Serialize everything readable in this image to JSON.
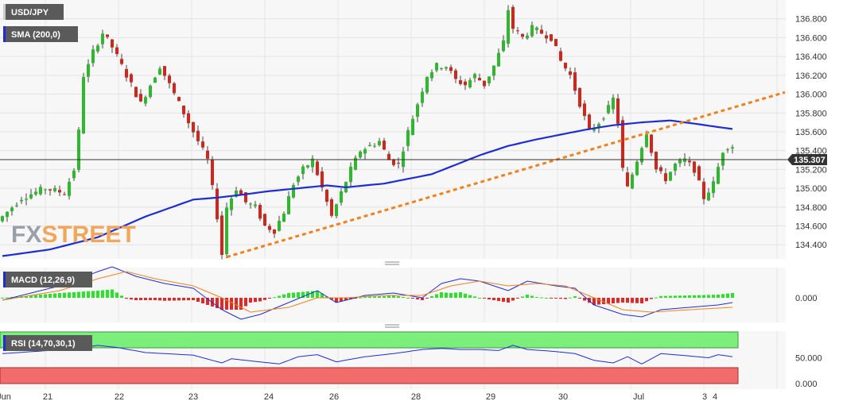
{
  "chart_data": {
    "type": "candlestick",
    "symbol": "USD/JPY",
    "indicator_label": "SMA (200,0)",
    "macd_label": "MACD (12,26,9)",
    "rsi_label": "RSI (14,70,30,1)",
    "watermark": {
      "fx": "FX",
      "street": "STREET"
    },
    "current_price": "135.307",
    "price_axis": {
      "min": 134.25,
      "max": 137.0,
      "ticks": [
        "134.400",
        "134.600",
        "134.800",
        "135.000",
        "135.200",
        "135.400",
        "135.600",
        "135.800",
        "136.000",
        "136.200",
        "136.400",
        "136.600",
        "136.800"
      ]
    },
    "macd_axis": {
      "ticks": [
        "0.000"
      ]
    },
    "rsi_axis": {
      "ticks": [
        "50.000",
        "0.000"
      ],
      "overbought": 70,
      "oversold": 30
    },
    "x_labels": [
      "Jun",
      "21",
      "22",
      "23",
      "24",
      "26",
      "28",
      "29",
      "30",
      "Jul",
      "3",
      "4"
    ],
    "price_path": [
      [
        0,
        134.65
      ],
      [
        5,
        134.9
      ],
      [
        10,
        135.0
      ],
      [
        14,
        134.95
      ],
      [
        16,
        135.2
      ],
      [
        17,
        135.6
      ],
      [
        18,
        136.2
      ],
      [
        19,
        136.3
      ],
      [
        20,
        136.45
      ],
      [
        22,
        136.65
      ],
      [
        24,
        136.5
      ],
      [
        26,
        136.3
      ],
      [
        28,
        136.1
      ],
      [
        30,
        135.9
      ],
      [
        32,
        136.1
      ],
      [
        34,
        136.3
      ],
      [
        36,
        136.1
      ],
      [
        38,
        135.9
      ],
      [
        40,
        135.7
      ],
      [
        42,
        135.5
      ],
      [
        44,
        135.3
      ],
      [
        46,
        134.7
      ],
      [
        47,
        134.3
      ],
      [
        48,
        134.8
      ],
      [
        50,
        135.0
      ],
      [
        52,
        134.85
      ],
      [
        54,
        134.8
      ],
      [
        56,
        134.6
      ],
      [
        58,
        134.55
      ],
      [
        60,
        134.75
      ],
      [
        62,
        135.05
      ],
      [
        64,
        135.2
      ],
      [
        66,
        135.3
      ],
      [
        68,
        135.0
      ],
      [
        70,
        134.7
      ],
      [
        72,
        134.95
      ],
      [
        74,
        135.2
      ],
      [
        76,
        135.4
      ],
      [
        78,
        135.45
      ],
      [
        80,
        135.5
      ],
      [
        82,
        135.3
      ],
      [
        84,
        135.25
      ],
      [
        86,
        135.6
      ],
      [
        88,
        135.9
      ],
      [
        90,
        136.2
      ],
      [
        92,
        136.3
      ],
      [
        94,
        136.3
      ],
      [
        96,
        136.15
      ],
      [
        98,
        136.1
      ],
      [
        100,
        136.2
      ],
      [
        102,
        136.1
      ],
      [
        104,
        136.3
      ],
      [
        106,
        136.55
      ],
      [
        107,
        136.9
      ],
      [
        108,
        136.7
      ],
      [
        110,
        136.6
      ],
      [
        112,
        136.7
      ],
      [
        114,
        136.65
      ],
      [
        116,
        136.6
      ],
      [
        118,
        136.35
      ],
      [
        120,
        136.2
      ],
      [
        122,
        135.9
      ],
      [
        124,
        135.6
      ],
      [
        126,
        135.7
      ],
      [
        128,
        135.85
      ],
      [
        129,
        135.95
      ],
      [
        130,
        135.7
      ],
      [
        131,
        135.2
      ],
      [
        132,
        135.0
      ],
      [
        134,
        135.3
      ],
      [
        136,
        135.6
      ],
      [
        138,
        135.2
      ],
      [
        140,
        135.1
      ],
      [
        142,
        135.25
      ],
      [
        144,
        135.3
      ],
      [
        146,
        135.2
      ],
      [
        148,
        134.9
      ],
      [
        150,
        135.05
      ],
      [
        152,
        135.4
      ],
      [
        153,
        135.45
      ]
    ],
    "sma_path": [
      [
        0,
        134.28
      ],
      [
        10,
        134.35
      ],
      [
        20,
        134.48
      ],
      [
        30,
        134.7
      ],
      [
        40,
        134.88
      ],
      [
        45,
        134.9
      ],
      [
        50,
        134.93
      ],
      [
        56,
        134.97
      ],
      [
        62,
        135.0
      ],
      [
        68,
        135.03
      ],
      [
        72,
        135.01
      ],
      [
        80,
        135.05
      ],
      [
        90,
        135.15
      ],
      [
        100,
        135.35
      ],
      [
        106,
        135.45
      ],
      [
        112,
        135.52
      ],
      [
        118,
        135.58
      ],
      [
        122,
        135.62
      ],
      [
        128,
        135.67
      ],
      [
        134,
        135.7
      ],
      [
        140,
        135.72
      ],
      [
        146,
        135.68
      ],
      [
        150,
        135.65
      ],
      [
        153,
        135.63
      ]
    ],
    "trendline": {
      "from": [
        47,
        134.27
      ],
      "to": [
        164,
        136.02
      ],
      "color": "#f0821e"
    },
    "macd_path": [
      [
        0,
        -0.01
      ],
      [
        12,
        0.05
      ],
      [
        20,
        0.11
      ],
      [
        23,
        0.13
      ],
      [
        28,
        0.09
      ],
      [
        34,
        0.06
      ],
      [
        40,
        0.04
      ],
      [
        46,
        -0.05
      ],
      [
        50,
        -0.09
      ],
      [
        54,
        -0.07
      ],
      [
        60,
        -0.02
      ],
      [
        66,
        0.03
      ],
      [
        70,
        -0.02
      ],
      [
        76,
        0.01
      ],
      [
        82,
        0.02
      ],
      [
        88,
        0.0
      ],
      [
        92,
        0.06
      ],
      [
        96,
        0.08
      ],
      [
        100,
        0.07
      ],
      [
        106,
        0.03
      ],
      [
        110,
        0.07
      ],
      [
        116,
        0.05
      ],
      [
        120,
        0.04
      ],
      [
        124,
        -0.03
      ],
      [
        130,
        -0.07
      ],
      [
        134,
        -0.08
      ],
      [
        138,
        -0.05
      ],
      [
        144,
        -0.04
      ],
      [
        150,
        -0.03
      ],
      [
        153,
        -0.02
      ]
    ],
    "signal_path": [
      [
        0,
        -0.01
      ],
      [
        12,
        0.03
      ],
      [
        20,
        0.08
      ],
      [
        26,
        0.11
      ],
      [
        32,
        0.08
      ],
      [
        40,
        0.05
      ],
      [
        46,
        0.0
      ],
      [
        52,
        -0.06
      ],
      [
        60,
        -0.04
      ],
      [
        66,
        0.0
      ],
      [
        72,
        0.0
      ],
      [
        80,
        0.01
      ],
      [
        88,
        0.01
      ],
      [
        94,
        0.05
      ],
      [
        100,
        0.07
      ],
      [
        106,
        0.05
      ],
      [
        112,
        0.06
      ],
      [
        118,
        0.05
      ],
      [
        124,
        0.0
      ],
      [
        130,
        -0.05
      ],
      [
        136,
        -0.06
      ],
      [
        144,
        -0.05
      ],
      [
        153,
        -0.04
      ]
    ],
    "rsi_path": [
      [
        0,
        58
      ],
      [
        8,
        63
      ],
      [
        16,
        68
      ],
      [
        20,
        74
      ],
      [
        24,
        70
      ],
      [
        30,
        60
      ],
      [
        40,
        55
      ],
      [
        46,
        40
      ],
      [
        48,
        48
      ],
      [
        54,
        42
      ],
      [
        58,
        38
      ],
      [
        62,
        52
      ],
      [
        66,
        56
      ],
      [
        70,
        42
      ],
      [
        76,
        52
      ],
      [
        82,
        58
      ],
      [
        88,
        66
      ],
      [
        92,
        68
      ],
      [
        96,
        66
      ],
      [
        100,
        66
      ],
      [
        104,
        64
      ],
      [
        107,
        74
      ],
      [
        110,
        66
      ],
      [
        116,
        62
      ],
      [
        120,
        58
      ],
      [
        124,
        45
      ],
      [
        128,
        40
      ],
      [
        131,
        52
      ],
      [
        134,
        38
      ],
      [
        138,
        58
      ],
      [
        142,
        55
      ],
      [
        148,
        50
      ],
      [
        150,
        56
      ],
      [
        153,
        52
      ]
    ],
    "colors": {
      "up": "#2db82d",
      "down": "#d0261c",
      "sma": "#1f2ed4",
      "trend": "#f0821e",
      "macd": "#1f2ed4",
      "signal": "#f0821e",
      "hist_up": "#29e329",
      "hist_down": "#e32626",
      "rsi": "#1f2ed4",
      "ob": "#7cee7c",
      "os": "#f26c6c",
      "badge": "#5a5a5a"
    }
  }
}
